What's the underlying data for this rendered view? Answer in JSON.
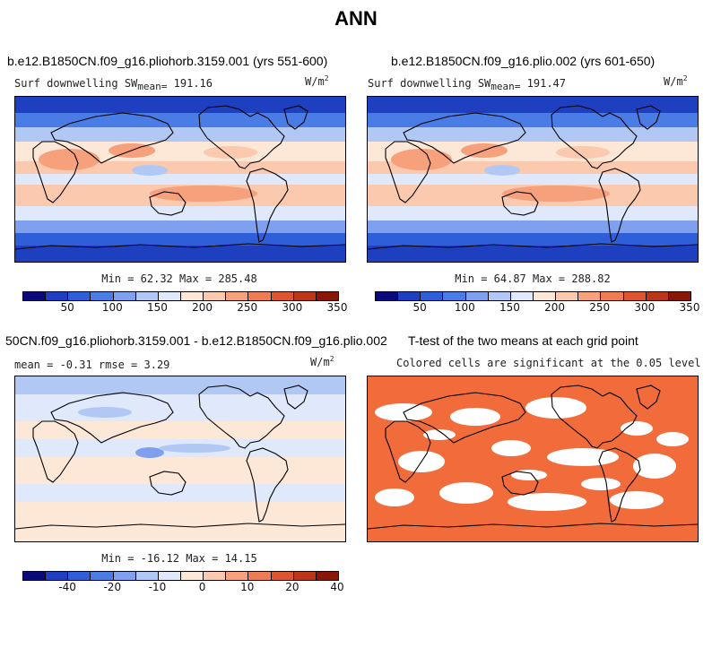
{
  "page": {
    "title": "ANN"
  },
  "panels": {
    "p1": {
      "title": "b.e12.B1850CN.f09_g16.pliohorb.3159.001 (yrs 551-600)",
      "var": "Surf downwelling SW",
      "mean_label": "mean=",
      "mean_value": "191.16",
      "units": "W/m",
      "units_sup": "2",
      "minmax": "Min =  62.32 Max = 285.48"
    },
    "p2": {
      "title": "b.e12.B1850CN.f09_g16.plio.002 (yrs 601-650)",
      "var": "Surf downwelling SW",
      "mean_label": "mean=",
      "mean_value": "191.47",
      "units": "W/m",
      "units_sup": "2",
      "minmax": "Min =  64.87 Max = 288.82"
    },
    "p3": {
      "title": "50CN.f09_g16.pliohorb.3159.001 - b.e12.B1850CN.f09_g16.plio.002",
      "stats": "mean =  -0.31    rmse =   3.29",
      "units": "W/m",
      "units_sup": "2",
      "minmax": "Min = -16.12 Max =  14.15"
    },
    "p4": {
      "title": "T-test of the two means at each grid point",
      "subtitle": "Colored cells are significant at the 0.05 level"
    }
  },
  "colorbars": {
    "abs": {
      "ticks": [
        "50",
        "100",
        "150",
        "200",
        "250",
        "300",
        "350"
      ]
    },
    "diff": {
      "ticks": [
        "-40",
        "-20",
        "-10",
        "0",
        "10",
        "20",
        "40"
      ]
    }
  },
  "palette": [
    "#0a0a7a",
    "#1d3fc0",
    "#2f5fd8",
    "#4a7ce6",
    "#7ea0ee",
    "#b2c8f4",
    "#e0e8fb",
    "#fde7d7",
    "#fbc9ad",
    "#f6a07c",
    "#ee7b52",
    "#dd5530",
    "#bb3517",
    "#8a1605"
  ],
  "chart_data": [
    {
      "type": "heatmap",
      "title": "b.e12.B1850CN.f09_g16.pliohorb.3159.001 (yrs 551-600)",
      "variable": "Surf downwelling SW",
      "units": "W/m2",
      "mean": 191.16,
      "min": 62.32,
      "max": 285.48,
      "colorbar_ticks": [
        50,
        100,
        150,
        200,
        250,
        300,
        350
      ]
    },
    {
      "type": "heatmap",
      "title": "b.e12.B1850CN.f09_g16.plio.002 (yrs 601-650)",
      "variable": "Surf downwelling SW",
      "units": "W/m2",
      "mean": 191.47,
      "min": 64.87,
      "max": 288.82,
      "colorbar_ticks": [
        50,
        100,
        150,
        200,
        250,
        300,
        350
      ]
    },
    {
      "type": "heatmap",
      "title": "50CN.f09_g16.pliohorb.3159.001 - b.e12.B1850CN.f09_g16.plio.002",
      "units": "W/m2",
      "mean": -0.31,
      "rmse": 3.29,
      "min": -16.12,
      "max": 14.15,
      "colorbar_ticks": [
        -40,
        -20,
        -10,
        0,
        10,
        20,
        40
      ]
    },
    {
      "type": "heatmap",
      "title": "T-test of the two means at each grid point",
      "subtitle": "Colored cells are significant at the 0.05 level",
      "significant_color": "#f26b3a"
    }
  ]
}
